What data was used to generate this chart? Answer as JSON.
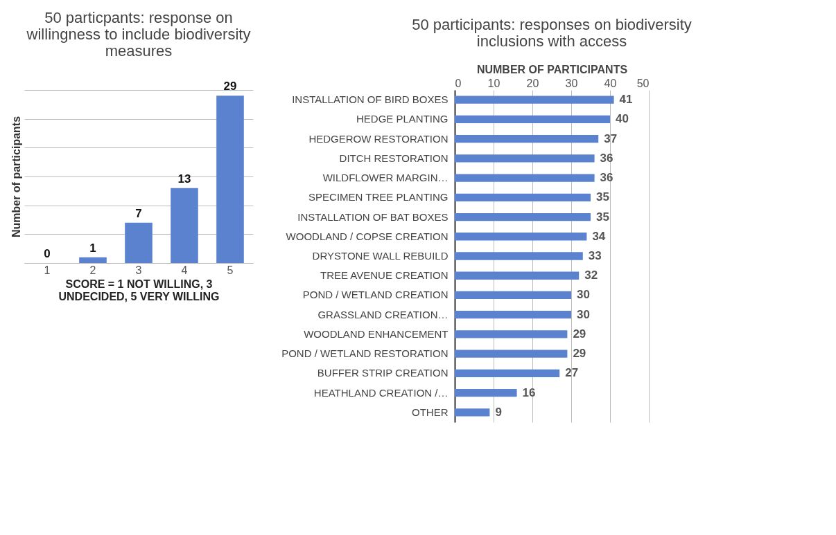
{
  "chart_data": [
    {
      "type": "bar",
      "title": "50 particpants: response on willingness to include biodiversity measures",
      "xlabel": "SCORE = 1 NOT WILLING,  3 UNDECIDED, 5 VERY WILLING",
      "ylabel": "Number of participants",
      "categories": [
        "1",
        "2",
        "3",
        "4",
        "5"
      ],
      "values": [
        0,
        1,
        7,
        13,
        29
      ],
      "color": "#5b82cf",
      "ylim": [
        0,
        30
      ],
      "yticks": [
        0,
        5,
        10,
        15,
        20,
        25,
        30
      ],
      "tick_labels": "x",
      "grid": "y",
      "data_labels": true
    },
    {
      "type": "bar",
      "orientation": "horizontal",
      "title": "50 participants: responses on biodiversity inclusions with access",
      "xlabel": "NUMBER OF PARTICIPANTS",
      "categories": [
        "INSTALLATION OF BIRD BOXES",
        "HEDGE PLANTING",
        "HEDGEROW RESTORATION",
        "DITCH RESTORATION",
        "WILDFLOWER MARGIN…",
        "SPECIMEN TREE PLANTING",
        "INSTALLATION OF BAT BOXES",
        "WOODLAND / COPSE CREATION",
        "DRYSTONE WALL REBUILD",
        "TREE AVENUE CREATION",
        "POND / WETLAND CREATION",
        "GRASSLAND CREATION…",
        "WOODLAND ENHANCEMENT",
        "POND / WETLAND RESTORATION",
        "BUFFER STRIP CREATION",
        "HEATHLAND CREATION /…",
        "OTHER"
      ],
      "values": [
        41,
        40,
        37,
        36,
        36,
        35,
        35,
        34,
        33,
        32,
        30,
        30,
        29,
        29,
        27,
        16,
        9
      ],
      "color": "#5b82cf",
      "xlim": [
        0,
        50
      ],
      "xticks": [
        0,
        10,
        20,
        30,
        40,
        50
      ],
      "grid": "x",
      "data_labels": true
    }
  ]
}
